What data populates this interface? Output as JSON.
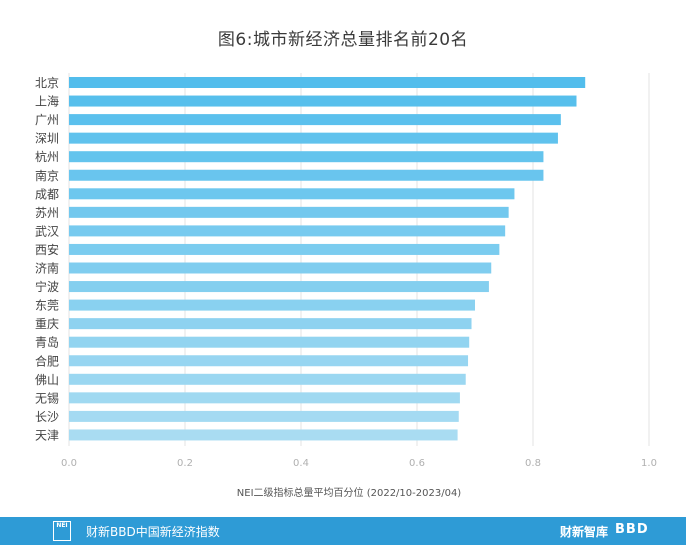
{
  "title": "图6:城市新经济总量排名前20名",
  "footer": {
    "logo_text": "NEI",
    "brand": "财新BBD中国新经济指数",
    "partner1": "财新智库",
    "partner2": "BBD"
  },
  "chart_data": {
    "type": "bar",
    "orientation": "horizontal",
    "title": "图6:城市新经济总量排名前20名",
    "xlabel": "NEI二级指标总量平均百分位 (2022/10-2023/04)",
    "ylabel": "",
    "xlim": [
      0,
      1.0
    ],
    "xticks": [
      "0.0",
      "0.2",
      "0.4",
      "0.6",
      "0.8",
      "1.0"
    ],
    "grid": true,
    "categories": [
      "北京",
      "上海",
      "广州",
      "深圳",
      "杭州",
      "南京",
      "成都",
      "苏州",
      "武汉",
      "西安",
      "济南",
      "宁波",
      "东莞",
      "重庆",
      "青岛",
      "合肥",
      "佛山",
      "无锡",
      "长沙",
      "天津"
    ],
    "values": [
      0.89,
      0.875,
      0.848,
      0.843,
      0.818,
      0.818,
      0.768,
      0.758,
      0.752,
      0.742,
      0.728,
      0.724,
      0.7,
      0.694,
      0.69,
      0.688,
      0.684,
      0.674,
      0.672,
      0.67
    ],
    "colors": {
      "bar_start": "#52bdec",
      "bar_end": "#a9dcf2",
      "grid": "#e3e3e3",
      "axis_text": "#b0b0b0",
      "label_text": "#444444"
    }
  }
}
